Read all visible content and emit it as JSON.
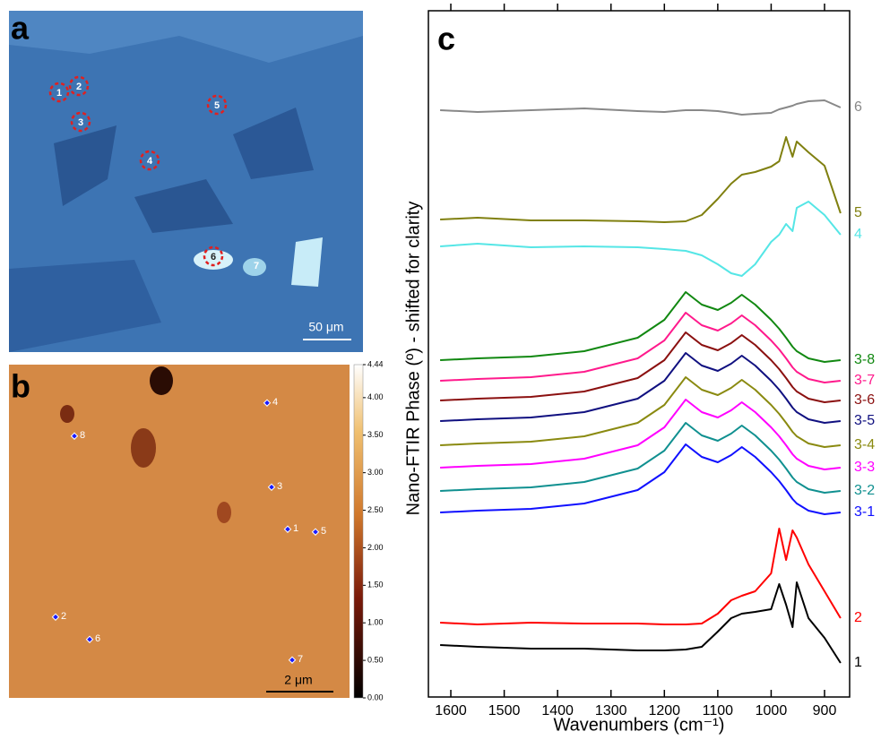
{
  "panels": {
    "a": {
      "label": "a",
      "markers": [
        "1",
        "2",
        "3",
        "4",
        "5",
        "6",
        "7"
      ],
      "scale_bar": "50 μm"
    },
    "b": {
      "label": "b",
      "markers": [
        "1",
        "2",
        "3",
        "4",
        "5",
        "6",
        "7",
        "8"
      ],
      "scale_bar": "2 μm",
      "colorbar": {
        "lim": [
          0,
          4.44
        ],
        "ticks": [
          {
            "value": 4.44,
            "label": "4.44"
          },
          {
            "value": 4,
            "label": "4.00"
          },
          {
            "value": 3.5,
            "label": "3.50"
          },
          {
            "value": 3,
            "label": "3.00"
          },
          {
            "value": 2.5,
            "label": "2.50"
          },
          {
            "value": 2,
            "label": "2.00"
          },
          {
            "value": 1.5,
            "label": "1.50"
          },
          {
            "value": 1,
            "label": "1.00"
          },
          {
            "value": 0.5,
            "label": "0.50"
          },
          {
            "value": 0,
            "label": "0.00"
          }
        ]
      }
    }
  },
  "chart_data": {
    "type": "line",
    "panel_label": "c",
    "x_label": "Wavenumbers (cm⁻¹)",
    "y_label": "Nano-FTIR Phase (º) - shifted for clarity",
    "xlim": [
      1642,
      853
    ],
    "ylim": [
      0,
      76.6
    ],
    "xticks": [
      1600,
      1500,
      1400,
      1300,
      1200,
      1100,
      1000,
      900
    ],
    "x": [
      1620,
      1550,
      1450,
      1350,
      1250,
      1200,
      1160,
      1130,
      1100,
      1075,
      1055,
      1030,
      1000,
      985,
      972,
      960,
      952,
      930,
      900,
      870
    ],
    "series": [
      {
        "name": "6",
        "color": "#888888",
        "values": [
          65.5,
          65.3,
          65.5,
          65.7,
          65.4,
          65.3,
          65.5,
          65.5,
          65.4,
          65.2,
          65.0,
          65.1,
          65.2,
          65.6,
          65.8,
          66.0,
          66.2,
          66.5,
          66.6,
          65.8
        ]
      },
      {
        "name": "5",
        "color": "#808010",
        "values": [
          53.3,
          53.5,
          53.2,
          53.2,
          53.1,
          53.0,
          53.1,
          53.8,
          55.6,
          57.3,
          58.3,
          58.6,
          59.2,
          59.8,
          62.5,
          60.3,
          62.0,
          60.8,
          59.3,
          54.0
        ]
      },
      {
        "name": "4",
        "color": "#55e6e6",
        "values": [
          50.3,
          50.6,
          50.2,
          50.3,
          50.2,
          50.0,
          49.8,
          49.3,
          48.3,
          47.3,
          47.0,
          48.3,
          50.8,
          51.6,
          52.8,
          52.0,
          54.6,
          55.3,
          53.8,
          51.6
        ]
      },
      {
        "name": "3-8",
        "color": "#118811",
        "values": [
          37.6,
          37.8,
          38.0,
          38.6,
          40.1,
          42.1,
          45.2,
          43.8,
          43.2,
          44.0,
          44.9,
          43.8,
          42.1,
          41.1,
          40.1,
          39.1,
          38.6,
          37.8,
          37.4,
          37.6
        ]
      },
      {
        "name": "3-7",
        "color": "#ff1a8c",
        "values": [
          35.3,
          35.5,
          35.7,
          36.3,
          37.8,
          39.8,
          42.9,
          41.5,
          40.9,
          41.7,
          42.6,
          41.5,
          39.8,
          38.8,
          37.8,
          36.8,
          36.3,
          35.5,
          35.1,
          35.3
        ]
      },
      {
        "name": "3-6",
        "color": "#8b1010",
        "values": [
          33.1,
          33.3,
          33.5,
          34.1,
          35.6,
          37.6,
          40.7,
          39.3,
          38.7,
          39.5,
          40.4,
          39.3,
          37.6,
          36.6,
          35.6,
          34.6,
          34.1,
          33.3,
          32.9,
          33.1
        ]
      },
      {
        "name": "3-5",
        "color": "#101080",
        "values": [
          30.8,
          31.0,
          31.2,
          31.8,
          33.3,
          35.3,
          38.4,
          37.0,
          36.4,
          37.2,
          38.1,
          37.0,
          35.3,
          34.3,
          33.3,
          32.3,
          31.8,
          31.0,
          30.6,
          30.8
        ]
      },
      {
        "name": "3-4",
        "color": "#8a8a10",
        "values": [
          28.1,
          28.3,
          28.5,
          29.1,
          30.6,
          32.6,
          35.7,
          34.3,
          33.7,
          34.5,
          35.4,
          34.3,
          32.6,
          31.6,
          30.6,
          29.6,
          29.1,
          28.3,
          27.9,
          28.1
        ]
      },
      {
        "name": "3-3",
        "color": "#ff00ff",
        "values": [
          25.6,
          25.8,
          26.0,
          26.6,
          28.1,
          30.1,
          33.2,
          31.8,
          31.2,
          32.0,
          32.9,
          31.8,
          30.1,
          29.1,
          28.1,
          27.1,
          26.6,
          25.8,
          25.4,
          25.6
        ]
      },
      {
        "name": "3-2",
        "color": "#109090",
        "values": [
          23.0,
          23.2,
          23.4,
          24.0,
          25.5,
          27.5,
          30.6,
          29.2,
          28.6,
          29.4,
          30.3,
          29.2,
          27.5,
          26.5,
          25.5,
          24.5,
          24.0,
          23.2,
          22.8,
          23.0
        ]
      },
      {
        "name": "3-1",
        "color": "#1010ff",
        "values": [
          20.6,
          20.8,
          21.0,
          21.6,
          23.1,
          25.1,
          28.2,
          26.8,
          26.2,
          27.0,
          27.9,
          26.8,
          25.1,
          24.1,
          23.1,
          22.1,
          21.6,
          20.8,
          20.4,
          20.6
        ]
      },
      {
        "name": "2",
        "color": "#ff0000",
        "values": [
          8.3,
          8.1,
          8.3,
          8.2,
          8.2,
          8.1,
          8.1,
          8.2,
          9.3,
          10.8,
          11.3,
          11.8,
          13.8,
          18.8,
          15.3,
          18.6,
          17.8,
          14.8,
          11.8,
          8.8
        ]
      },
      {
        "name": "1",
        "color": "#000000",
        "values": [
          5.8,
          5.6,
          5.4,
          5.4,
          5.2,
          5.2,
          5.3,
          5.6,
          7.3,
          8.8,
          9.3,
          9.5,
          9.8,
          12.6,
          10.3,
          7.8,
          12.8,
          8.8,
          6.6,
          3.8
        ]
      }
    ]
  }
}
